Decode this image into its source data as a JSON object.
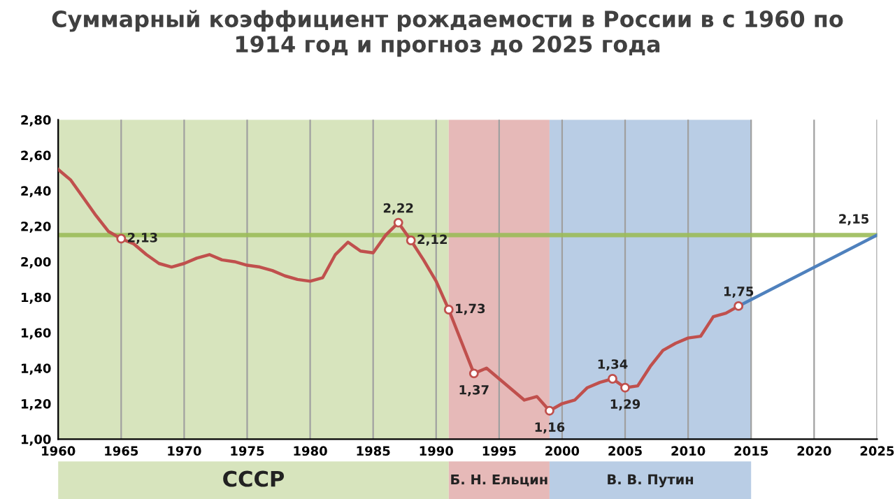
{
  "chart_data": {
    "type": "line",
    "title": "Суммарный коэффициент рождаемости в России в с 1960 по\n1914 год и прогноз до 2025 года",
    "series": [
      {
        "name": null,
        "color": "#c0504d",
        "x": [
          1960,
          1961,
          1962,
          1963,
          1964,
          1965,
          1966,
          1967,
          1968,
          1969,
          1970,
          1971,
          1972,
          1973,
          1974,
          1975,
          1976,
          1977,
          1978,
          1979,
          1980,
          1981,
          1982,
          1983,
          1984,
          1985,
          1986,
          1987,
          1988,
          1989,
          1990,
          1991,
          1992,
          1993,
          1994,
          1995,
          1996,
          1997,
          1998,
          1999,
          2000,
          2001,
          2002,
          2003,
          2004,
          2005,
          2006,
          2007,
          2008,
          2009,
          2010,
          2011,
          2012,
          2013,
          2014
        ],
        "values": [
          2.52,
          2.46,
          2.36,
          2.26,
          2.17,
          2.13,
          2.1,
          2.04,
          1.99,
          1.97,
          1.99,
          2.02,
          2.04,
          2.01,
          2.0,
          1.98,
          1.97,
          1.95,
          1.92,
          1.9,
          1.89,
          1.91,
          2.04,
          2.11,
          2.06,
          2.05,
          2.15,
          2.22,
          2.12,
          2.01,
          1.89,
          1.73,
          1.55,
          1.37,
          1.4,
          1.34,
          1.28,
          1.22,
          1.24,
          1.16,
          1.2,
          1.22,
          1.29,
          1.32,
          1.34,
          1.29,
          1.3,
          1.41,
          1.5,
          1.54,
          1.57,
          1.58,
          1.69,
          1.71,
          1.75
        ],
        "value_labels": [
          null,
          null,
          null,
          null,
          null,
          "2,13",
          null,
          null,
          null,
          null,
          null,
          null,
          null,
          null,
          null,
          null,
          null,
          null,
          null,
          null,
          null,
          null,
          null,
          null,
          null,
          null,
          null,
          "2,22",
          "2,12",
          null,
          null,
          "1,73",
          null,
          "1,37",
          null,
          null,
          null,
          null,
          null,
          "1,16",
          null,
          null,
          null,
          null,
          "1,34",
          "1,29",
          null,
          null,
          null,
          null,
          null,
          null,
          null,
          null,
          "1,75"
        ]
      },
      {
        "name": null,
        "color": "#4f81bd",
        "marker": "none",
        "x": [
          2014,
          2025
        ],
        "values": [
          1.75,
          2.15
        ]
      }
    ],
    "annotations": [
      {
        "text": "2,15",
        "x": 2025,
        "y": 2.15
      }
    ],
    "ref_lines": [
      {
        "axis": "y",
        "value": 2.15,
        "color": "#9bbb59"
      }
    ],
    "bands": [
      {
        "axis": "x",
        "from": 1960,
        "to": 1991,
        "label": "СССР",
        "color": "#d7e4bd"
      },
      {
        "axis": "x",
        "from": 1991,
        "to": 1999,
        "label": "Б. Н. Ельцин",
        "color": "#e6b9b8"
      },
      {
        "axis": "x",
        "from": 1999,
        "to": 2015,
        "label": "В. В. Путин",
        "color": "#b9cde5"
      }
    ],
    "xlim": [
      1960,
      2025
    ],
    "xticks": [
      1960,
      1965,
      1970,
      1975,
      1980,
      1985,
      1990,
      1995,
      2000,
      2005,
      2010,
      2015,
      2020,
      2025
    ],
    "ylim": [
      1.0,
      2.8
    ],
    "yticks": [
      {
        "value": 1.0,
        "label": "1,00"
      },
      {
        "value": 1.2,
        "label": "1,20"
      },
      {
        "value": 1.4,
        "label": "1,40"
      },
      {
        "value": 1.6,
        "label": "1,60"
      },
      {
        "value": 1.8,
        "label": "1,80"
      },
      {
        "value": 2.0,
        "label": "2,00"
      },
      {
        "value": 2.2,
        "label": "2,20"
      },
      {
        "value": 2.4,
        "label": "2,40"
      },
      {
        "value": 2.6,
        "label": "2,60"
      },
      {
        "value": 2.8,
        "label": "2,80"
      }
    ],
    "grid": "x",
    "line_style": "solid",
    "legend": false
  }
}
